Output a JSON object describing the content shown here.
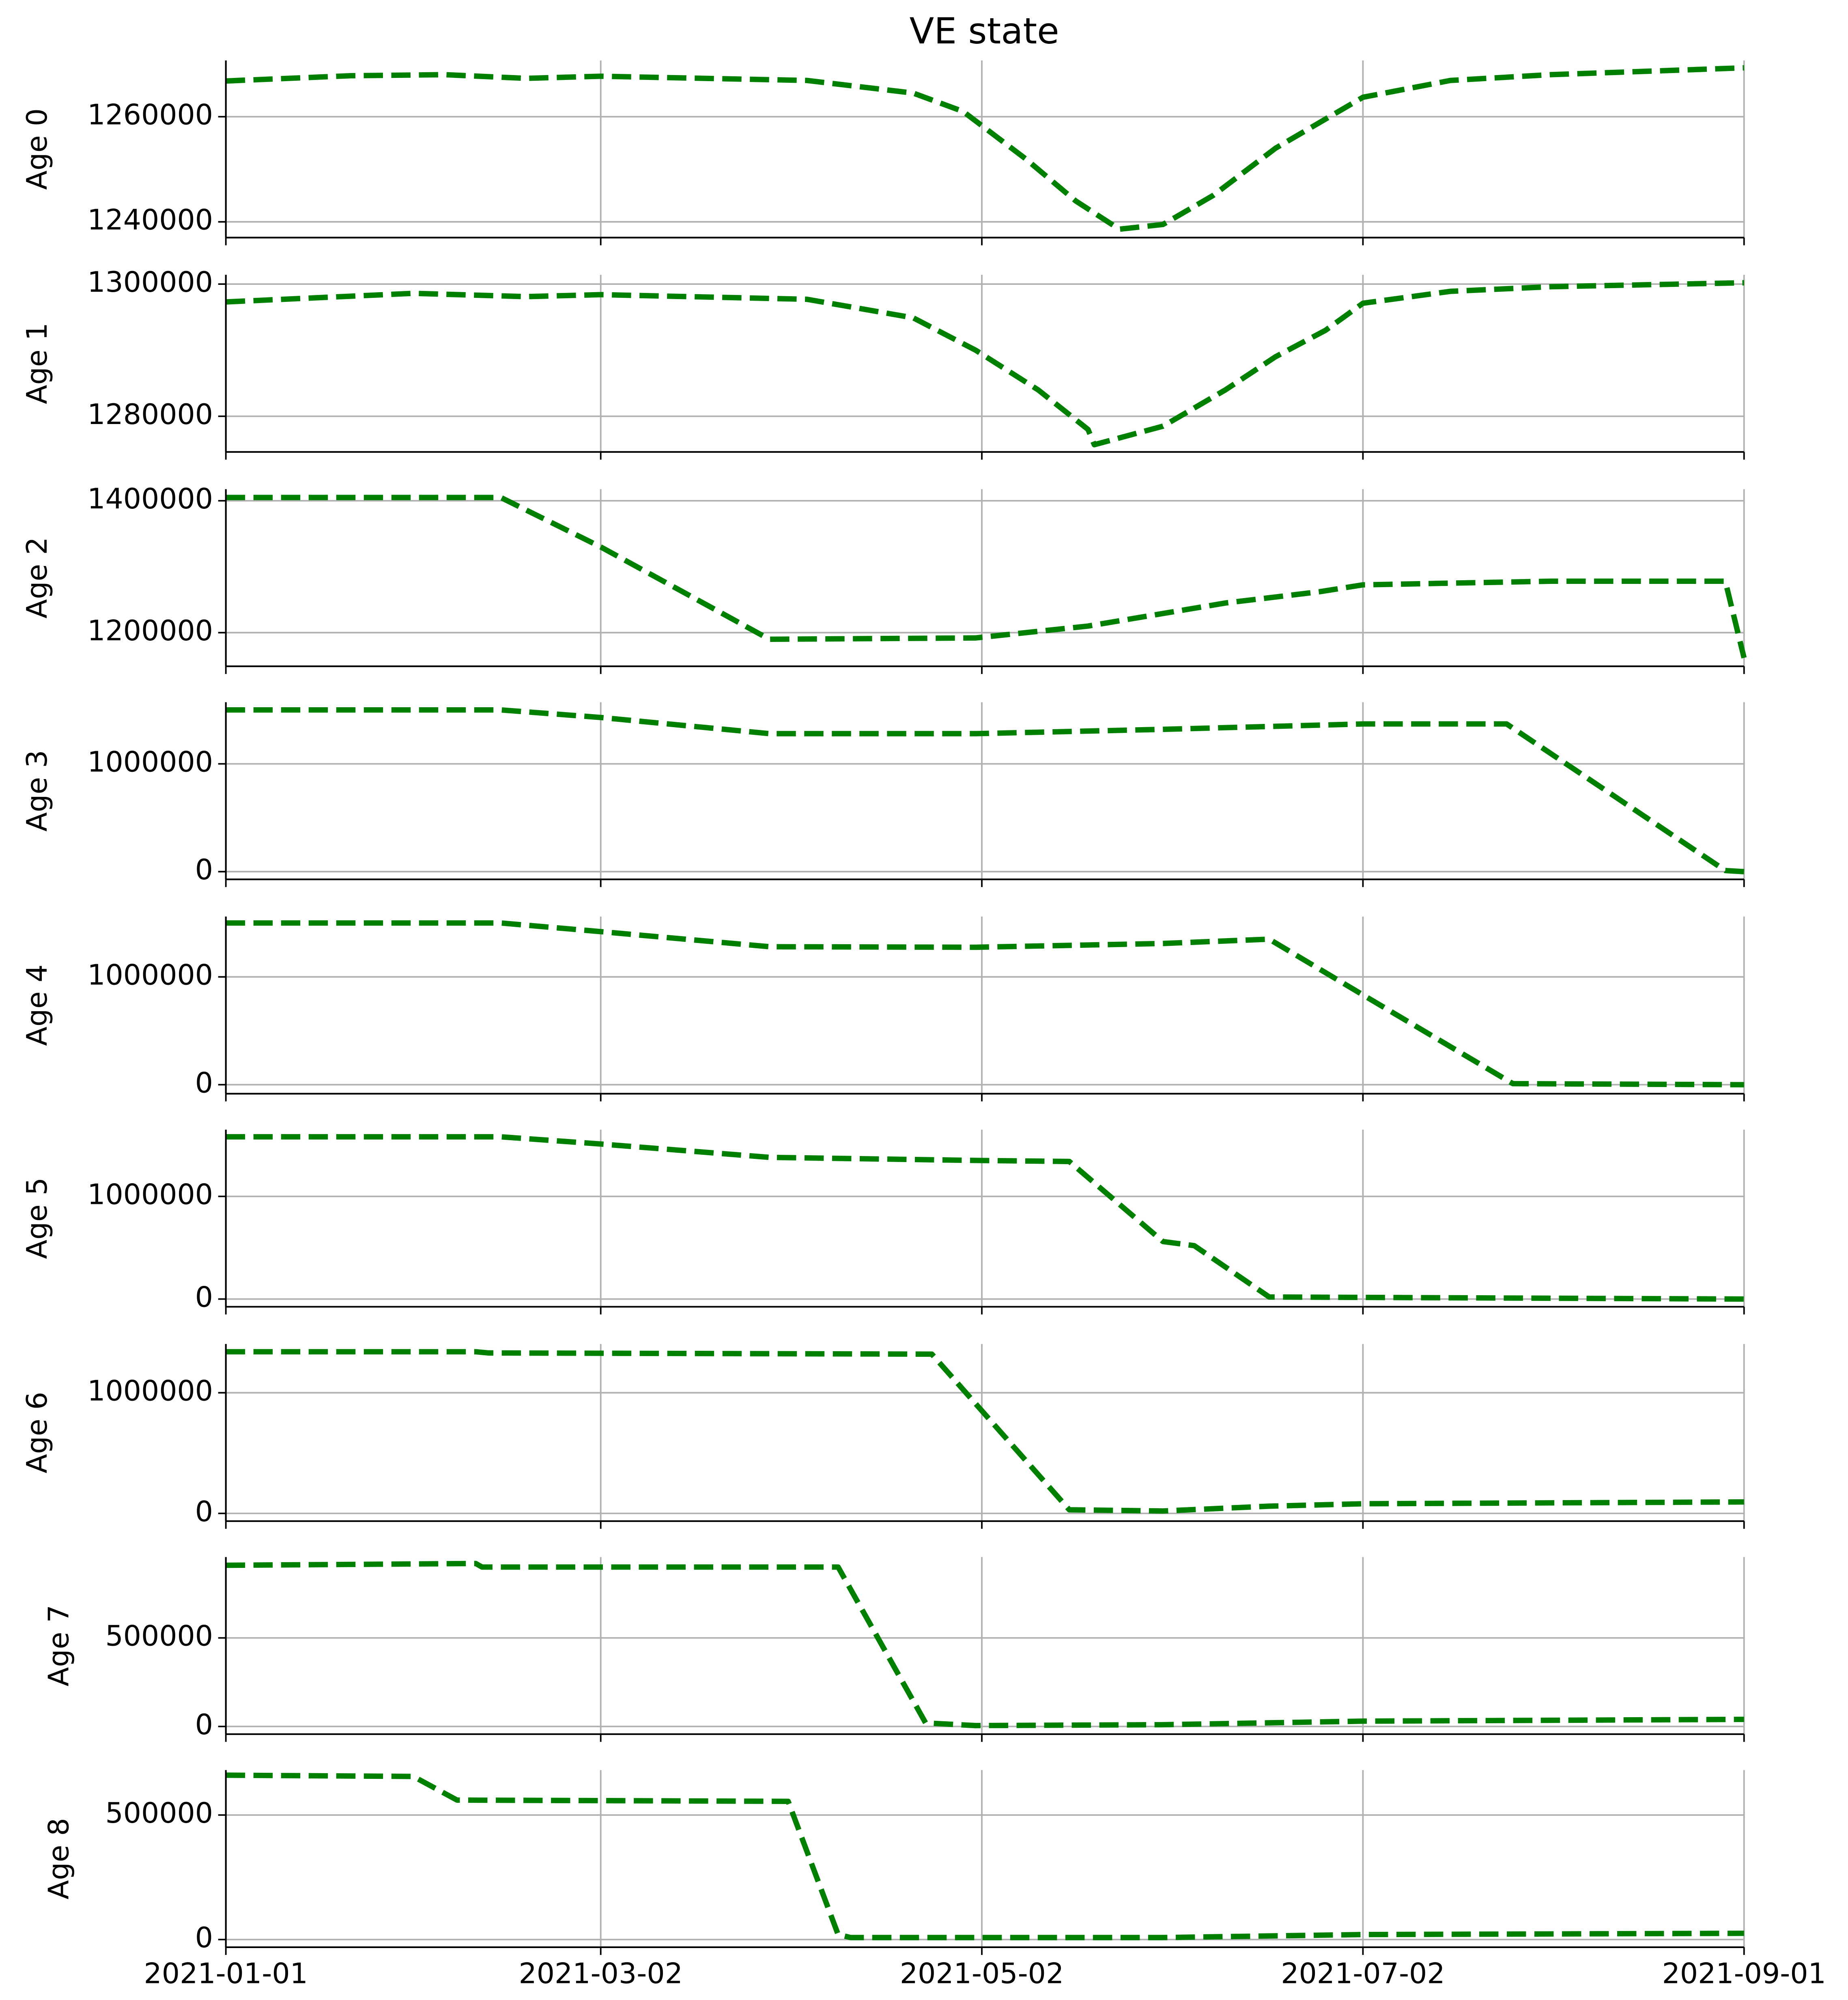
{
  "chart_data": [
    {
      "type": "line",
      "title": "VE state",
      "ylabel": "Age 0",
      "xlim": [
        "2021-01-01",
        "2021-09-01"
      ],
      "xticks": [
        "2021-01-01",
        "2021-03-02",
        "2021-05-02",
        "2021-07-02",
        "2021-09-01"
      ],
      "ylim": [
        1237000,
        1270700
      ],
      "yticks": [
        1240000,
        1260000
      ],
      "grid": true,
      "x": [
        "2021-01-01",
        "2021-01-21",
        "2021-02-05",
        "2021-02-18",
        "2021-03-02",
        "2021-04-04",
        "2021-04-21",
        "2021-04-29",
        "2021-05-09",
        "2021-05-17",
        "2021-05-24",
        "2021-05-31",
        "2021-06-08",
        "2021-06-18",
        "2021-07-02",
        "2021-07-16",
        "2021-08-01",
        "2021-09-01"
      ],
      "series": [
        {
          "name": "Age 0",
          "color": "#008000",
          "values": [
            1266800,
            1267800,
            1268000,
            1267300,
            1267700,
            1266900,
            1264500,
            1261000,
            1252000,
            1244000,
            1238600,
            1239500,
            1245000,
            1254000,
            1263700,
            1266900,
            1268000,
            1269300
          ]
        }
      ]
    },
    {
      "type": "line",
      "ylabel": "Age 1",
      "xlim": [
        "2021-01-01",
        "2021-09-01"
      ],
      "xticks": [
        "2021-01-01",
        "2021-03-02",
        "2021-05-02",
        "2021-07-02",
        "2021-09-01"
      ],
      "ylim": [
        1274600,
        1301400
      ],
      "yticks": [
        1280000,
        1300000
      ],
      "grid": true,
      "x": [
        "2021-01-01",
        "2021-01-31",
        "2021-02-18",
        "2021-03-02",
        "2021-04-04",
        "2021-04-21",
        "2021-05-01",
        "2021-05-11",
        "2021-05-19",
        "2021-05-20",
        "2021-05-31",
        "2021-06-10",
        "2021-06-18",
        "2021-06-26",
        "2021-07-02",
        "2021-07-16",
        "2021-08-01",
        "2021-09-01"
      ],
      "series": [
        {
          "name": "Age 1",
          "color": "#008000",
          "values": [
            1297300,
            1298600,
            1298100,
            1298400,
            1297700,
            1294900,
            1290000,
            1284000,
            1278000,
            1275700,
            1278500,
            1284000,
            1289000,
            1293000,
            1297100,
            1298900,
            1299600,
            1300200
          ]
        }
      ]
    },
    {
      "type": "line",
      "ylabel": "Age 2",
      "xlim": [
        "2021-01-01",
        "2021-09-01"
      ],
      "xticks": [
        "2021-01-01",
        "2021-03-02",
        "2021-05-02",
        "2021-07-02",
        "2021-09-01"
      ],
      "ylim": [
        1149000,
        1417600
      ],
      "yticks": [
        1200000,
        1400000
      ],
      "grid": true,
      "x": [
        "2021-01-01",
        "2021-02-14",
        "2021-03-02",
        "2021-03-29",
        "2021-05-01",
        "2021-05-19",
        "2021-06-10",
        "2021-06-25",
        "2021-07-02",
        "2021-08-01",
        "2021-08-29",
        "2021-09-01"
      ],
      "series": [
        {
          "name": "Age 2",
          "color": "#008000",
          "values": [
            1405000,
            1405000,
            1330000,
            1190000,
            1192000,
            1210000,
            1245000,
            1262000,
            1272500,
            1278000,
            1278000,
            1161800
          ]
        }
      ]
    },
    {
      "type": "line",
      "ylabel": "Age 3",
      "xlim": [
        "2021-01-01",
        "2021-09-01"
      ],
      "xticks": [
        "2021-01-01",
        "2021-03-02",
        "2021-05-02",
        "2021-07-02",
        "2021-09-01"
      ],
      "ylim": [
        -71400,
        1571400
      ],
      "yticks": [
        0,
        1000000
      ],
      "grid": true,
      "x": [
        "2021-01-01",
        "2021-02-14",
        "2021-03-02",
        "2021-03-29",
        "2021-05-01",
        "2021-05-31",
        "2021-07-02",
        "2021-07-25",
        "2021-08-29",
        "2021-09-01"
      ],
      "series": [
        {
          "name": "Age 3",
          "color": "#008000",
          "values": [
            1500000,
            1500000,
            1430000,
            1280000,
            1280000,
            1320000,
            1370000,
            1370000,
            10000,
            0
          ]
        }
      ]
    },
    {
      "type": "line",
      "ylabel": "Age 4",
      "xlim": [
        "2021-01-01",
        "2021-09-01"
      ],
      "xticks": [
        "2021-01-01",
        "2021-03-02",
        "2021-05-02",
        "2021-07-02",
        "2021-09-01"
      ],
      "ylim": [
        -83300,
        1559500
      ],
      "yticks": [
        0,
        1000000
      ],
      "grid": true,
      "x": [
        "2021-01-01",
        "2021-02-14",
        "2021-03-02",
        "2021-03-29",
        "2021-05-01",
        "2021-05-31",
        "2021-06-17",
        "2021-07-02",
        "2021-07-26",
        "2021-09-01"
      ],
      "series": [
        {
          "name": "Age 4",
          "color": "#008000",
          "values": [
            1500000,
            1500000,
            1420000,
            1280000,
            1275000,
            1310000,
            1350000,
            833000,
            10000,
            0
          ]
        }
      ]
    },
    {
      "type": "line",
      "ylabel": "Age 5",
      "xlim": [
        "2021-01-01",
        "2021-09-01"
      ],
      "xticks": [
        "2021-01-01",
        "2021-03-02",
        "2021-05-02",
        "2021-07-02",
        "2021-09-01"
      ],
      "ylim": [
        -75000,
        1650000
      ],
      "yticks": [
        0,
        1000000
      ],
      "grid": true,
      "x": [
        "2021-01-01",
        "2021-02-14",
        "2021-03-02",
        "2021-03-29",
        "2021-05-01",
        "2021-05-16",
        "2021-05-31",
        "2021-06-05",
        "2021-06-17",
        "2021-09-01"
      ],
      "series": [
        {
          "name": "Age 5",
          "color": "#008000",
          "values": [
            1580000,
            1580000,
            1510000,
            1380000,
            1350000,
            1340000,
            560000,
            520000,
            20000,
            0
          ]
        }
      ]
    },
    {
      "type": "line",
      "ylabel": "Age 6",
      "xlim": [
        "2021-01-01",
        "2021-09-01"
      ],
      "xticks": [
        "2021-01-01",
        "2021-03-02",
        "2021-05-02",
        "2021-07-02",
        "2021-09-01"
      ],
      "ylim": [
        -63800,
        1404300
      ],
      "yticks": [
        0,
        1000000
      ],
      "grid": true,
      "x": [
        "2021-01-01",
        "2021-02-10",
        "2021-02-12",
        "2021-04-24",
        "2021-05-16",
        "2021-05-31",
        "2021-06-17",
        "2021-07-02",
        "2021-09-01"
      ],
      "series": [
        {
          "name": "Age 6",
          "color": "#008000",
          "values": [
            1340000,
            1340000,
            1330000,
            1320000,
            30000,
            20000,
            60000,
            80000,
            95000
          ]
        }
      ]
    },
    {
      "type": "line",
      "ylabel": "Age 7",
      "xlim": [
        "2021-01-01",
        "2021-09-01"
      ],
      "xticks": [
        "2021-01-01",
        "2021-03-02",
        "2021-05-02",
        "2021-07-02",
        "2021-09-01"
      ],
      "ylim": [
        -43500,
        956500
      ],
      "yticks": [
        0,
        500000
      ],
      "grid": true,
      "x": [
        "2021-01-01",
        "2021-02-10",
        "2021-02-11",
        "2021-04-09",
        "2021-04-23",
        "2021-05-01",
        "2021-05-31",
        "2021-07-02",
        "2021-09-01"
      ],
      "series": [
        {
          "name": "Age 7",
          "color": "#008000",
          "values": [
            910000,
            920000,
            900000,
            900000,
            20000,
            5000,
            10000,
            30000,
            40000
          ]
        }
      ]
    },
    {
      "type": "line",
      "ylabel": "Age 8",
      "xlim": [
        "2021-01-01",
        "2021-09-01"
      ],
      "xticks": [
        "2021-01-01",
        "2021-03-02",
        "2021-05-02",
        "2021-07-02",
        "2021-09-01"
      ],
      "ylim": [
        -30900,
        680400
      ],
      "yticks": [
        0,
        500000
      ],
      "grid": true,
      "x": [
        "2021-01-01",
        "2021-01-31",
        "2021-02-07",
        "2021-04-01",
        "2021-04-09",
        "2021-04-11",
        "2021-05-31",
        "2021-07-02",
        "2021-09-01"
      ],
      "series": [
        {
          "name": "Age 8",
          "color": "#008000",
          "values": [
            660000,
            655000,
            560000,
            555000,
            20000,
            8000,
            8000,
            20000,
            25000
          ]
        }
      ]
    }
  ]
}
